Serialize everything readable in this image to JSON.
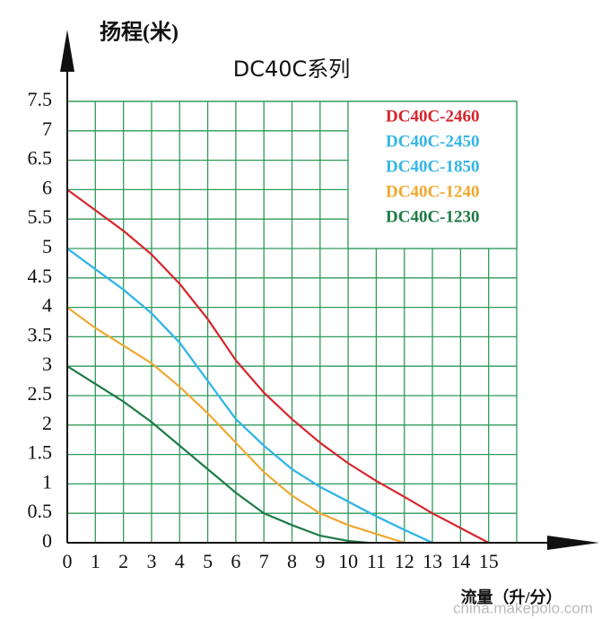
{
  "chart_data": {
    "type": "line",
    "title": "DC40C系列",
    "y_label": "扬程(米)",
    "x_label": "流量（升/分）",
    "xlim": [
      0,
      16
    ],
    "ylim": [
      0,
      7.5
    ],
    "xticks": [
      0,
      1,
      2,
      3,
      4,
      5,
      6,
      7,
      8,
      9,
      10,
      11,
      12,
      13,
      14,
      15
    ],
    "yticks": [
      0,
      0.5,
      1,
      1.5,
      2,
      2.5,
      3,
      3.5,
      4,
      4.5,
      5,
      5.5,
      6,
      6.5,
      7,
      7.5
    ],
    "grid": true,
    "grid_color": "#2f9a5a",
    "legend": "top-right",
    "series": [
      {
        "name": "DC40C-2460",
        "color": "#d7262e",
        "x": [
          0,
          1,
          2,
          3,
          4,
          5,
          6,
          7,
          8,
          9,
          10,
          11,
          12,
          13,
          14,
          15
        ],
        "values": [
          6,
          5.65,
          5.3,
          4.9,
          4.4,
          3.8,
          3.1,
          2.55,
          2.1,
          1.7,
          1.35,
          1.05,
          0.78,
          0.5,
          0.25,
          0
        ]
      },
      {
        "name": "DC40C-2450",
        "color": "#35b6e6",
        "x": [
          0,
          1,
          2,
          3,
          4,
          5,
          6,
          7,
          8,
          9,
          10,
          11,
          12,
          13
        ],
        "values": [
          5,
          4.65,
          4.3,
          3.9,
          3.4,
          2.75,
          2.1,
          1.65,
          1.25,
          0.95,
          0.7,
          0.45,
          0.22,
          0
        ]
      },
      {
        "name": "DC40C-1850",
        "color": "#35b6e6",
        "x": [
          0,
          1,
          2,
          3,
          4,
          5,
          6,
          7,
          8,
          9,
          10,
          11,
          12,
          13
        ],
        "values": [
          5,
          4.65,
          4.3,
          3.9,
          3.4,
          2.75,
          2.1,
          1.65,
          1.25,
          0.95,
          0.7,
          0.45,
          0.22,
          0
        ]
      },
      {
        "name": "DC40C-1240",
        "color": "#f0a830",
        "x": [
          0,
          1,
          2,
          3,
          4,
          5,
          6,
          7,
          8,
          9,
          10,
          11,
          12
        ],
        "values": [
          4,
          3.65,
          3.35,
          3.05,
          2.65,
          2.2,
          1.7,
          1.2,
          0.8,
          0.5,
          0.3,
          0.15,
          0
        ]
      },
      {
        "name": "DC40C-1230",
        "color": "#1e7a47",
        "x": [
          0,
          1,
          2,
          3,
          4,
          5,
          6,
          7,
          8,
          9,
          10,
          10.7
        ],
        "values": [
          3,
          2.7,
          2.4,
          2.05,
          1.65,
          1.25,
          0.85,
          0.5,
          0.3,
          0.12,
          0.03,
          0
        ]
      }
    ]
  },
  "watermark": "china.makepolo.com"
}
